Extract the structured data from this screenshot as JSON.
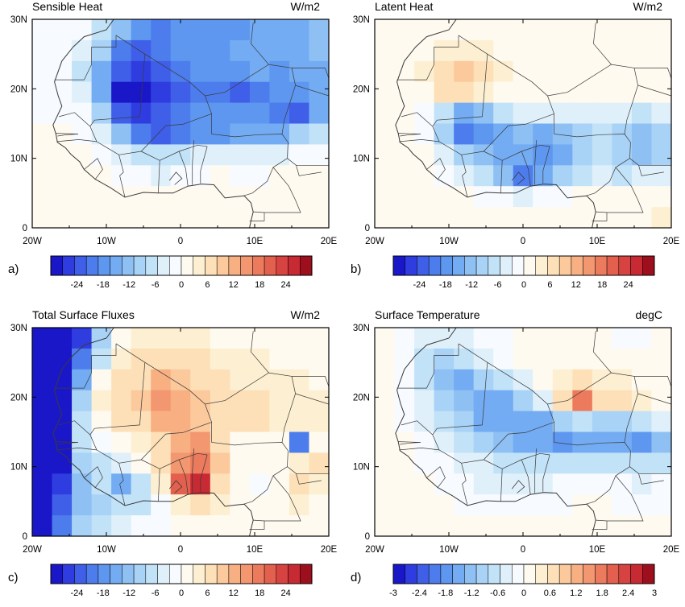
{
  "palette": {
    "neg": [
      "#1a17c8",
      "#2f3de0",
      "#3f5fe8",
      "#4d7ded",
      "#5e97f0",
      "#73acf2",
      "#8ec0f4",
      "#a8d2f6",
      "#c2e2f8",
      "#dff0fa"
    ],
    "zero": [
      "#f7fbff",
      "#fffaf0"
    ],
    "pos": [
      "#fdf0d2",
      "#fde0b8",
      "#fbc99c",
      "#f8b083",
      "#f39770",
      "#ec7b5d",
      "#e2604d",
      "#d74340",
      "#c82a34",
      "#9e0f1e"
    ],
    "map_line": "#3a3a3a"
  },
  "chart_data": [
    {
      "id": "a",
      "type": "heatmap",
      "panel_label": "a)",
      "title": "Sensible Heat",
      "units": "W/m2",
      "x_ticks": [
        "20W",
        "10W",
        "0",
        "10E",
        "20E"
      ],
      "y_ticks": [
        "30N",
        "20N",
        "10N",
        "0"
      ],
      "xlim": [
        -20,
        20
      ],
      "ylim": [
        0,
        30
      ],
      "colorbar": {
        "ticks": [
          "-24",
          "-18",
          "-12",
          "-6",
          "0",
          "6",
          "12",
          "18",
          "24"
        ],
        "range": [
          -30,
          30
        ]
      },
      "field": [
        [
          -1,
          -1,
          -2,
          -6,
          -12,
          -18,
          -20,
          -19,
          -18,
          -18,
          -17,
          -16,
          -15,
          -14,
          -13
        ],
        [
          -1,
          -2,
          -4,
          -10,
          -20,
          -22,
          -20,
          -19,
          -18,
          -17,
          -16,
          -16,
          -15,
          -14,
          -13
        ],
        [
          -1,
          -2,
          -6,
          -14,
          -24,
          -26,
          -22,
          -20,
          -18,
          -17,
          -18,
          -16,
          -17,
          -16,
          -14
        ],
        [
          -1,
          -1,
          -4,
          -16,
          -28,
          -30,
          -26,
          -22,
          -20,
          -20,
          -22,
          -20,
          -19,
          -18,
          -16
        ],
        [
          -1,
          -1,
          -2,
          -10,
          -22,
          -26,
          -24,
          -20,
          -19,
          -18,
          -19,
          -18,
          -20,
          -22,
          -16
        ],
        [
          0,
          0,
          -1,
          -4,
          -12,
          -20,
          -22,
          -20,
          -18,
          -17,
          -16,
          -15,
          -14,
          -10,
          -8
        ],
        [
          0,
          0,
          0,
          -1,
          -3,
          -6,
          -8,
          -6,
          -5,
          -4,
          -4,
          -4,
          -3,
          -2,
          -2
        ],
        [
          1,
          1,
          1,
          0,
          -1,
          -2,
          -3,
          -2,
          -1,
          0,
          -1,
          -1,
          0,
          0,
          0
        ],
        [
          1,
          1,
          1,
          1,
          1,
          0,
          0,
          1,
          1,
          1,
          1,
          0,
          1,
          1,
          1
        ],
        [
          1,
          1,
          1,
          1,
          1,
          1,
          1,
          1,
          1,
          1,
          1,
          1,
          1,
          1,
          1
        ]
      ]
    },
    {
      "id": "b",
      "type": "heatmap",
      "panel_label": "b)",
      "title": "Latent Heat",
      "units": "W/m2",
      "x_ticks": [
        "20W",
        "10W",
        "0",
        "10E",
        "20E"
      ],
      "y_ticks": [
        "30N",
        "20N",
        "10N",
        "0"
      ],
      "xlim": [
        -20,
        20
      ],
      "ylim": [
        0,
        30
      ],
      "colorbar": {
        "ticks": [
          "-24",
          "-18",
          "-12",
          "-6",
          "0",
          "6",
          "12",
          "18",
          "24"
        ],
        "range": [
          -30,
          30
        ]
      },
      "field": [
        [
          1,
          1,
          1,
          2,
          2,
          1,
          1,
          1,
          1,
          1,
          1,
          1,
          1,
          1,
          1
        ],
        [
          1,
          1,
          2,
          4,
          5,
          3,
          2,
          2,
          1,
          1,
          1,
          1,
          1,
          1,
          1
        ],
        [
          1,
          1,
          3,
          8,
          10,
          6,
          3,
          2,
          2,
          1,
          1,
          1,
          1,
          1,
          1
        ],
        [
          1,
          1,
          2,
          6,
          8,
          5,
          2,
          2,
          1,
          1,
          1,
          1,
          1,
          1,
          1
        ],
        [
          1,
          1,
          -2,
          -8,
          -14,
          -12,
          -6,
          -4,
          -3,
          -3,
          -3,
          -3,
          -4,
          -6,
          -5
        ],
        [
          1,
          2,
          -2,
          -10,
          -20,
          -18,
          -14,
          -12,
          -14,
          -12,
          -9,
          -8,
          -10,
          -11,
          -10
        ],
        [
          2,
          2,
          0,
          -4,
          -10,
          -12,
          -14,
          -16,
          -18,
          -14,
          -10,
          -8,
          -10,
          -12,
          -10
        ],
        [
          2,
          1,
          1,
          -1,
          -4,
          -8,
          -12,
          -20,
          -16,
          -10,
          -6,
          -4,
          -6,
          -4,
          -3
        ],
        [
          2,
          2,
          1,
          1,
          0,
          -1,
          -2,
          -4,
          -2,
          -1,
          0,
          0,
          1,
          2,
          2
        ],
        [
          2,
          1,
          1,
          1,
          1,
          1,
          1,
          1,
          1,
          1,
          1,
          1,
          1,
          2,
          3
        ]
      ]
    },
    {
      "id": "c",
      "type": "heatmap",
      "panel_label": "c)",
      "title": "Total Surface Fluxes",
      "units": "W/m2",
      "x_ticks": [
        "20W",
        "10W",
        "0",
        "10E",
        "20E"
      ],
      "y_ticks": [
        "30N",
        "20N",
        "10N",
        "0"
      ],
      "xlim": [
        -20,
        20
      ],
      "ylim": [
        0,
        30
      ],
      "colorbar": {
        "ticks": [
          "-24",
          "-18",
          "-12",
          "-6",
          "0",
          "6",
          "12",
          "18",
          "24"
        ],
        "range": [
          -30,
          30
        ]
      },
      "field": [
        [
          -30,
          -30,
          -26,
          -10,
          2,
          4,
          5,
          4,
          3,
          2,
          1,
          1,
          1,
          0,
          0
        ],
        [
          -30,
          -30,
          -20,
          -6,
          4,
          6,
          8,
          7,
          6,
          4,
          3,
          3,
          2,
          1,
          1
        ],
        [
          -30,
          -30,
          -14,
          2,
          6,
          8,
          12,
          10,
          8,
          6,
          5,
          5,
          4,
          3,
          2
        ],
        [
          -30,
          -30,
          -10,
          4,
          8,
          10,
          14,
          12,
          10,
          8,
          7,
          6,
          5,
          4,
          3
        ],
        [
          -30,
          -28,
          -8,
          2,
          6,
          8,
          12,
          12,
          10,
          7,
          6,
          6,
          5,
          4,
          3
        ],
        [
          -30,
          -28,
          -8,
          -2,
          0,
          4,
          8,
          12,
          14,
          6,
          2,
          2,
          1,
          -20,
          2
        ],
        [
          -30,
          -28,
          -10,
          -6,
          -4,
          0,
          6,
          14,
          18,
          10,
          2,
          0,
          2,
          4,
          6
        ],
        [
          -30,
          -26,
          -12,
          -8,
          -14,
          -6,
          4,
          20,
          26,
          8,
          0,
          -2,
          2,
          6,
          4
        ],
        [
          -30,
          -24,
          -12,
          -10,
          -8,
          -6,
          -2,
          4,
          8,
          4,
          0,
          1,
          2,
          3,
          2
        ],
        [
          -30,
          -20,
          -10,
          -6,
          -4,
          -2,
          -1,
          0,
          1,
          1,
          0,
          0,
          1,
          1,
          1
        ]
      ]
    },
    {
      "id": "d",
      "type": "heatmap",
      "panel_label": "d)",
      "title": "Surface Temperature",
      "units": "degC",
      "x_ticks": [
        "20W",
        "10W",
        "0",
        "10E",
        "20E"
      ],
      "y_ticks": [
        "30N",
        "20N",
        "10N",
        "0"
      ],
      "xlim": [
        -20,
        20
      ],
      "ylim": [
        0,
        30
      ],
      "colorbar": {
        "ticks": [
          "-3",
          "-2.4",
          "-1.8",
          "-1.2",
          "-0.6",
          "0",
          "0.6",
          "1.2",
          "1.8",
          "2.4",
          "3"
        ],
        "range": [
          -3,
          3
        ]
      },
      "field": [
        [
          0,
          -0.1,
          -0.3,
          -0.4,
          -0.4,
          -0.2,
          -0.1,
          0,
          0.1,
          0.1,
          0,
          0,
          -0.1,
          -0.1,
          0
        ],
        [
          0,
          -0.2,
          -0.6,
          -1.0,
          -0.8,
          -0.4,
          -0.2,
          0,
          0.1,
          0.2,
          0.2,
          0.1,
          0.1,
          0,
          0
        ],
        [
          0,
          -0.2,
          -0.6,
          -1.2,
          -1.4,
          -1.0,
          -0.6,
          -0.3,
          0,
          0.4,
          0.6,
          0.4,
          0.3,
          0.2,
          0
        ],
        [
          0,
          -0.1,
          -0.4,
          -0.9,
          -1.3,
          -1.6,
          -1.4,
          -0.9,
          -0.4,
          0.6,
          1.8,
          0.8,
          0.6,
          0.4,
          0
        ],
        [
          0,
          -0.1,
          -0.3,
          -0.6,
          -1.0,
          -1.4,
          -1.6,
          -1.6,
          -1.4,
          -1.0,
          -0.8,
          -0.9,
          -1.0,
          -0.8,
          -0.4
        ],
        [
          0,
          0,
          -0.2,
          -0.4,
          -0.7,
          -1.0,
          -1.3,
          -1.4,
          -1.6,
          -1.7,
          -1.6,
          -1.5,
          -1.6,
          -1.8,
          -1.2
        ],
        [
          0,
          0,
          -0.1,
          -0.2,
          -0.3,
          -0.5,
          -0.7,
          -0.8,
          -0.8,
          -0.7,
          -0.6,
          -0.6,
          -0.6,
          -0.8,
          -0.6
        ],
        [
          0,
          0,
          0,
          -0.1,
          -0.2,
          -0.3,
          -0.3,
          -0.4,
          -0.3,
          -0.2,
          -0.2,
          -0.2,
          -0.2,
          -0.3,
          -0.2
        ],
        [
          0,
          0,
          0,
          0,
          -0.1,
          -0.1,
          -0.1,
          -0.1,
          -0.1,
          -0.1,
          0,
          0,
          -0.1,
          -0.1,
          -0.1
        ],
        [
          0,
          0,
          0,
          0,
          0,
          0,
          0,
          0,
          0,
          0,
          0,
          0,
          0,
          0,
          0
        ]
      ]
    }
  ]
}
